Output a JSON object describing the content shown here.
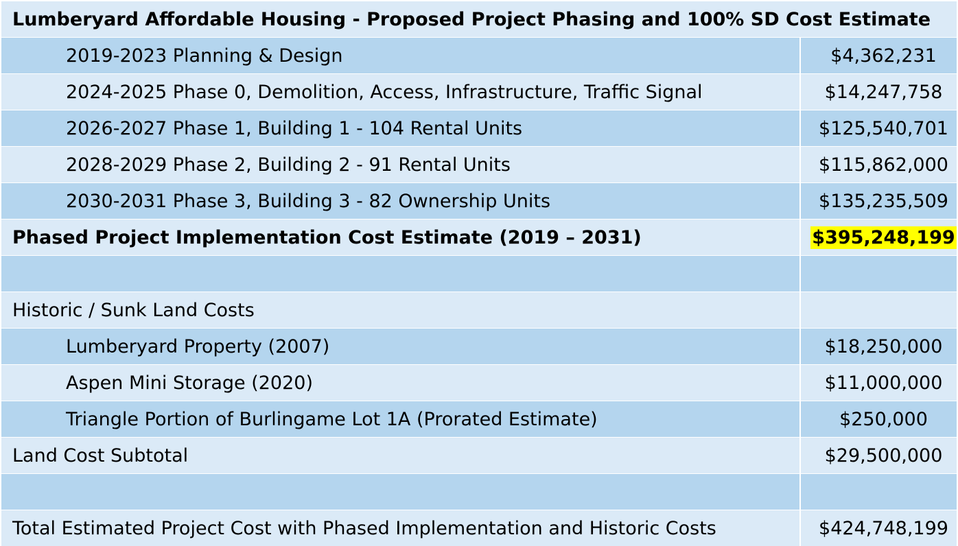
{
  "title": "Lumberyard Affordable Housing - Proposed Project Phasing and 100% SD Cost Estimate",
  "rows": [
    {
      "label": "2019-2023 Planning & Design",
      "value": "$4,362,231"
    },
    {
      "label": "2024-2025 Phase 0, Demolition, Access, Infrastructure, Traffic Signal",
      "value": "$14,247,758"
    },
    {
      "label": "2026-2027 Phase 1, Building 1 - 104 Rental Units",
      "value": "$125,540,701"
    },
    {
      "label": "2028-2029 Phase 2, Building 2 - 91 Rental Units",
      "value": "$115,862,000"
    },
    {
      "label": "2030-2031 Phase 3, Building 3 - 82 Ownership Units",
      "value": "$135,235,509"
    },
    {
      "label": "Phased Project Implementation Cost Estimate (2019 – 2031)",
      "value": "$395,248,199"
    },
    {
      "label": "",
      "value": ""
    },
    {
      "label": "Historic / Sunk Land Costs",
      "value": ""
    },
    {
      "label": "Lumberyard Property (2007)",
      "value": "$18,250,000"
    },
    {
      "label": "Aspen Mini Storage (2020)",
      "value": "$11,000,000"
    },
    {
      "label": "Triangle Portion of Burlingame Lot 1A (Prorated Estimate)",
      "value": "$250,000"
    },
    {
      "label": "Land Cost Subtotal",
      "value": "$29,500,000"
    },
    {
      "label": "",
      "value": ""
    },
    {
      "label": "Total Estimated Project Cost with Phased Implementation and Historic Costs",
      "value": "$424,748,199"
    }
  ],
  "colors": {
    "row_dark": "#b4d5ee",
    "row_light": "#dbeaf7",
    "highlight": "#ffff00"
  }
}
